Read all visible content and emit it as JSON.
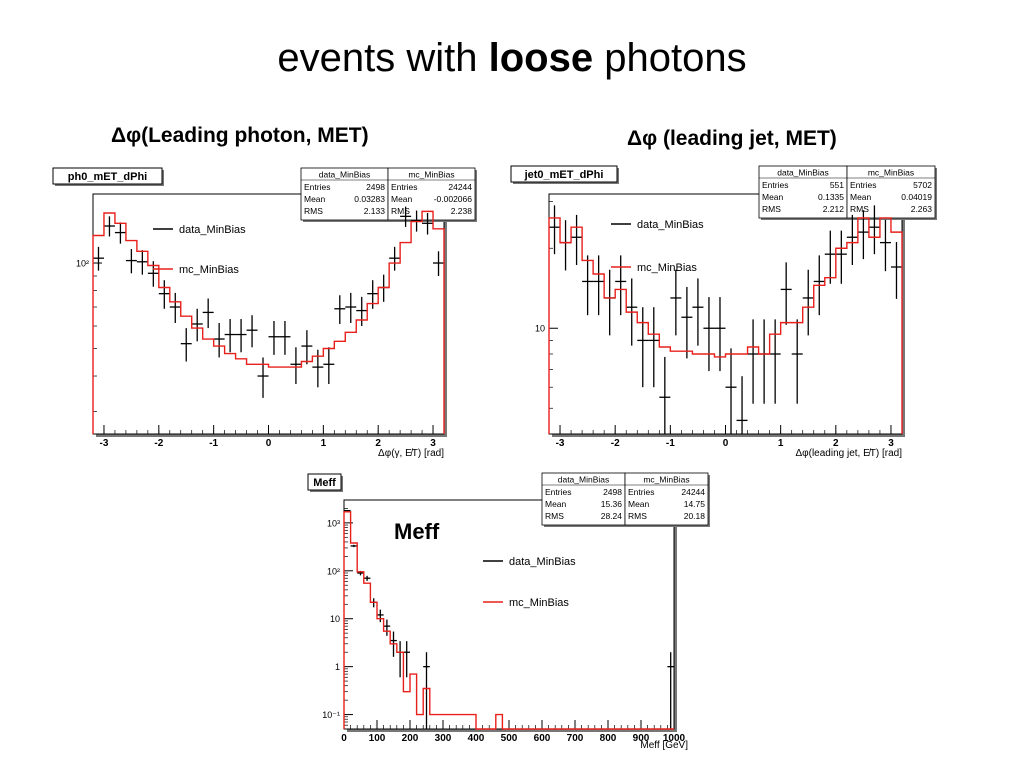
{
  "slide": {
    "title_prefix": "events with ",
    "title_bold": "loose",
    "title_suffix": " photons",
    "caption_left": "Δφ(Leading photon, MET)",
    "caption_right": "Δφ (leading jet, MET)",
    "caption_meff": "Meff"
  },
  "colors": {
    "data": "#000000",
    "mc": "#e8201c",
    "frame": "#000000"
  },
  "chart_data": [
    {
      "type": "line",
      "title": "ph0_mET_dPhi",
      "xlabel": "Δφ(γ, E̸T) [rad]",
      "ylabel": "",
      "log_y": true,
      "xlim": [
        -3.2,
        3.2
      ],
      "ylim": [
        25,
        175
      ],
      "x_ticks": [
        -3,
        -2,
        -1,
        0,
        1,
        2,
        3
      ],
      "x_tick_labels": [
        "-3",
        "-2",
        "-1",
        "0",
        "1",
        "2",
        "3"
      ],
      "y_ticks": [
        100
      ],
      "y_tick_labels": [
        "10²"
      ],
      "legend": {
        "position": "upper-left",
        "entries": [
          "data_MinBias",
          "mc_MinBias"
        ]
      },
      "stats": [
        {
          "name": "data_MinBias",
          "rows": [
            [
              "Entries",
              "2498"
            ],
            [
              "Mean",
              "0.03283"
            ],
            [
              "RMS",
              "2.133"
            ]
          ]
        },
        {
          "name": "mc_MinBias",
          "rows": [
            [
              "Entries",
              "24244"
            ],
            [
              "Mean",
              "-0.002066"
            ],
            [
              "RMS",
              "2.238"
            ]
          ]
        }
      ],
      "bin_edges": [
        -3.2,
        -3.0,
        -2.8,
        -2.6,
        -2.4,
        -2.2,
        -2.0,
        -1.8,
        -1.6,
        -1.4,
        -1.2,
        -1.0,
        -0.8,
        -0.6,
        -0.4,
        -0.2,
        0.0,
        0.2,
        0.4,
        0.6,
        0.8,
        1.0,
        1.2,
        1.4,
        1.6,
        1.8,
        2.0,
        2.2,
        2.4,
        2.6,
        2.8,
        3.0,
        3.2
      ],
      "series": [
        {
          "name": "data_MinBias",
          "style": "points",
          "values": [
            104,
            135,
            128,
            102,
            101,
            92,
            78,
            70,
            52,
            61,
            67,
            54,
            56,
            56,
            58,
            40,
            55,
            55,
            44,
            51,
            43,
            44,
            69,
            70,
            68,
            78,
            82,
            104,
            146,
            141,
            138,
            100
          ],
          "errors": [
            10,
            11,
            11,
            10,
            10,
            9.5,
            9,
            8.5,
            7,
            8,
            8,
            7.5,
            7.5,
            7.5,
            7.5,
            6.5,
            7.5,
            7.5,
            6.5,
            7,
            6.5,
            6.5,
            8,
            8.5,
            8,
            9,
            9,
            10,
            12,
            12,
            12,
            10
          ]
        },
        {
          "name": "mc_MinBias",
          "style": "step",
          "values": [
            125,
            150,
            138,
            120,
            110,
            98,
            82,
            73,
            65,
            59,
            54,
            51,
            48,
            46,
            44,
            44,
            43,
            43,
            43,
            45,
            47,
            50,
            53,
            57,
            63,
            72,
            82,
            100,
            118,
            140,
            152,
            132
          ]
        }
      ]
    },
    {
      "type": "line",
      "title": "jet0_mET_dPhi",
      "xlabel": "Δφ(leading jet, E̸T) [rad]",
      "ylabel": "",
      "log_y": true,
      "xlim": [
        -3.2,
        3.2
      ],
      "ylim": [
        4,
        32
      ],
      "x_ticks": [
        -3,
        -2,
        -1,
        0,
        1,
        2,
        3
      ],
      "x_tick_labels": [
        "-3",
        "-2",
        "-1",
        "0",
        "1",
        "2",
        "3"
      ],
      "y_ticks": [
        10
      ],
      "y_tick_labels": [
        "10"
      ],
      "legend": {
        "position": "upper-left",
        "entries": [
          "data_MinBias",
          "mc_MinBias"
        ]
      },
      "stats": [
        {
          "name": "data_MinBias",
          "rows": [
            [
              "Entries",
              "551"
            ],
            [
              "Mean",
              "0.1335"
            ],
            [
              "RMS",
              "2.212"
            ]
          ]
        },
        {
          "name": "mc_MinBias",
          "rows": [
            [
              "Entries",
              "5702"
            ],
            [
              "Mean",
              "0.04019"
            ],
            [
              "RMS",
              "2.263"
            ]
          ]
        }
      ],
      "bin_edges": [
        -3.2,
        -3.0,
        -2.8,
        -2.6,
        -2.4,
        -2.2,
        -2.0,
        -1.8,
        -1.6,
        -1.4,
        -1.2,
        -1.0,
        -0.8,
        -0.6,
        -0.4,
        -0.2,
        0.0,
        0.2,
        0.4,
        0.6,
        0.8,
        1.0,
        1.2,
        1.4,
        1.6,
        1.8,
        2.0,
        2.2,
        2.4,
        2.6,
        2.8,
        3.0,
        3.2
      ],
      "series": [
        {
          "name": "data_MinBias",
          "style": "points",
          "values": [
            24,
            21,
            22,
            15,
            15,
            13,
            15,
            12,
            9,
            9,
            5.5,
            13,
            11,
            12,
            10,
            10,
            6,
            4.5,
            8,
            8,
            8,
            14,
            8,
            13,
            15,
            19,
            19,
            22,
            23,
            24,
            21,
            17
          ],
          "errors": [
            5,
            4.5,
            4.7,
            3.8,
            3.8,
            3.6,
            3.8,
            3.4,
            3,
            3,
            2.3,
            3.6,
            3.3,
            3.4,
            3.1,
            3.1,
            2.4,
            2.1,
            2.8,
            2.8,
            2.8,
            3.7,
            2.8,
            3.6,
            3.8,
            4.3,
            4.3,
            4.7,
            4.8,
            5,
            4.6,
            4.1
          ]
        },
        {
          "name": "mc_MinBias",
          "style": "step",
          "values": [
            26,
            21,
            24,
            18,
            16,
            13,
            14,
            11.5,
            10.5,
            9.5,
            8.5,
            8.2,
            8.2,
            8,
            8,
            7.8,
            8,
            8,
            8.5,
            8,
            9.5,
            10.5,
            10.5,
            12,
            14.5,
            15.5,
            20,
            21,
            26,
            22,
            26,
            23
          ]
        }
      ]
    },
    {
      "type": "line",
      "title": "Meff",
      "xlabel": "Meff [GeV]",
      "ylabel": "",
      "log_y": true,
      "xlim": [
        0,
        1000
      ],
      "ylim": [
        0.05,
        3000
      ],
      "x_ticks": [
        0,
        100,
        200,
        300,
        400,
        500,
        600,
        700,
        800,
        900,
        1000
      ],
      "x_tick_labels": [
        "0",
        "100",
        "200",
        "300",
        "400",
        "500",
        "600",
        "700",
        "800",
        "900",
        "1000"
      ],
      "y_ticks": [
        0.1,
        1,
        10,
        100,
        1000
      ],
      "y_tick_labels": [
        "10⁻¹",
        "1",
        "10",
        "10²",
        "10³"
      ],
      "legend": {
        "position": "upper-right",
        "entries": [
          "data_MinBias",
          "mc_MinBias"
        ]
      },
      "stats": [
        {
          "name": "data_MinBias",
          "rows": [
            [
              "Entries",
              "2498"
            ],
            [
              "Mean",
              "15.36"
            ],
            [
              "RMS",
              "28.24"
            ]
          ]
        },
        {
          "name": "mc_MinBias",
          "rows": [
            [
              "Entries",
              "24244"
            ],
            [
              "Mean",
              "14.75"
            ],
            [
              "RMS",
              "20.18"
            ]
          ]
        }
      ],
      "bin_edges": [
        0,
        20,
        40,
        60,
        80,
        100,
        120,
        140,
        160,
        180,
        200,
        220,
        240,
        260,
        280,
        300,
        320,
        340,
        360,
        380,
        400,
        420,
        440,
        460,
        480,
        500,
        520,
        540,
        560,
        580,
        600,
        620,
        640,
        660,
        680,
        700,
        720,
        740,
        760,
        780,
        800,
        820,
        840,
        860,
        880,
        900,
        920,
        940,
        960,
        980,
        1000
      ],
      "series": [
        {
          "name": "data_MinBias",
          "style": "points",
          "values": [
            1800,
            330,
            90,
            70,
            22,
            12,
            7,
            3.5,
            2,
            2,
            0,
            0,
            1,
            0,
            0,
            0,
            0,
            0,
            0,
            0,
            0,
            0,
            0,
            0,
            0,
            0,
            0,
            0,
            0,
            0,
            0,
            0,
            0,
            0,
            0,
            0,
            0,
            0,
            0,
            0,
            0,
            0,
            0,
            0,
            0,
            0,
            0,
            0,
            0,
            1
          ],
          "errors": [
            45,
            18,
            9.5,
            8.5,
            4.7,
            3.5,
            2.6,
            1.9,
            1.4,
            1.4,
            0,
            0,
            1,
            0,
            0,
            0,
            0,
            0,
            0,
            0,
            0,
            0,
            0,
            0,
            0,
            0,
            0,
            0,
            0,
            0,
            0,
            0,
            0,
            0,
            0,
            0,
            0,
            0,
            0,
            0,
            0,
            0,
            0,
            0,
            0,
            0,
            0,
            0,
            0,
            1
          ]
        },
        {
          "name": "mc_MinBias",
          "style": "step",
          "values": [
            1700,
            380,
            95,
            55,
            22,
            10,
            5.5,
            3,
            2,
            0.3,
            0.7,
            0.1,
            0.35,
            0.1,
            0.1,
            0.1,
            0.1,
            0.1,
            0.1,
            0.1,
            0,
            0,
            0,
            0.1,
            0,
            0,
            0,
            0,
            0,
            0,
            0,
            0,
            0,
            0,
            0,
            0,
            0,
            0,
            0,
            0,
            0,
            0,
            0,
            0,
            0,
            0,
            0,
            0,
            0,
            0
          ]
        }
      ]
    }
  ]
}
